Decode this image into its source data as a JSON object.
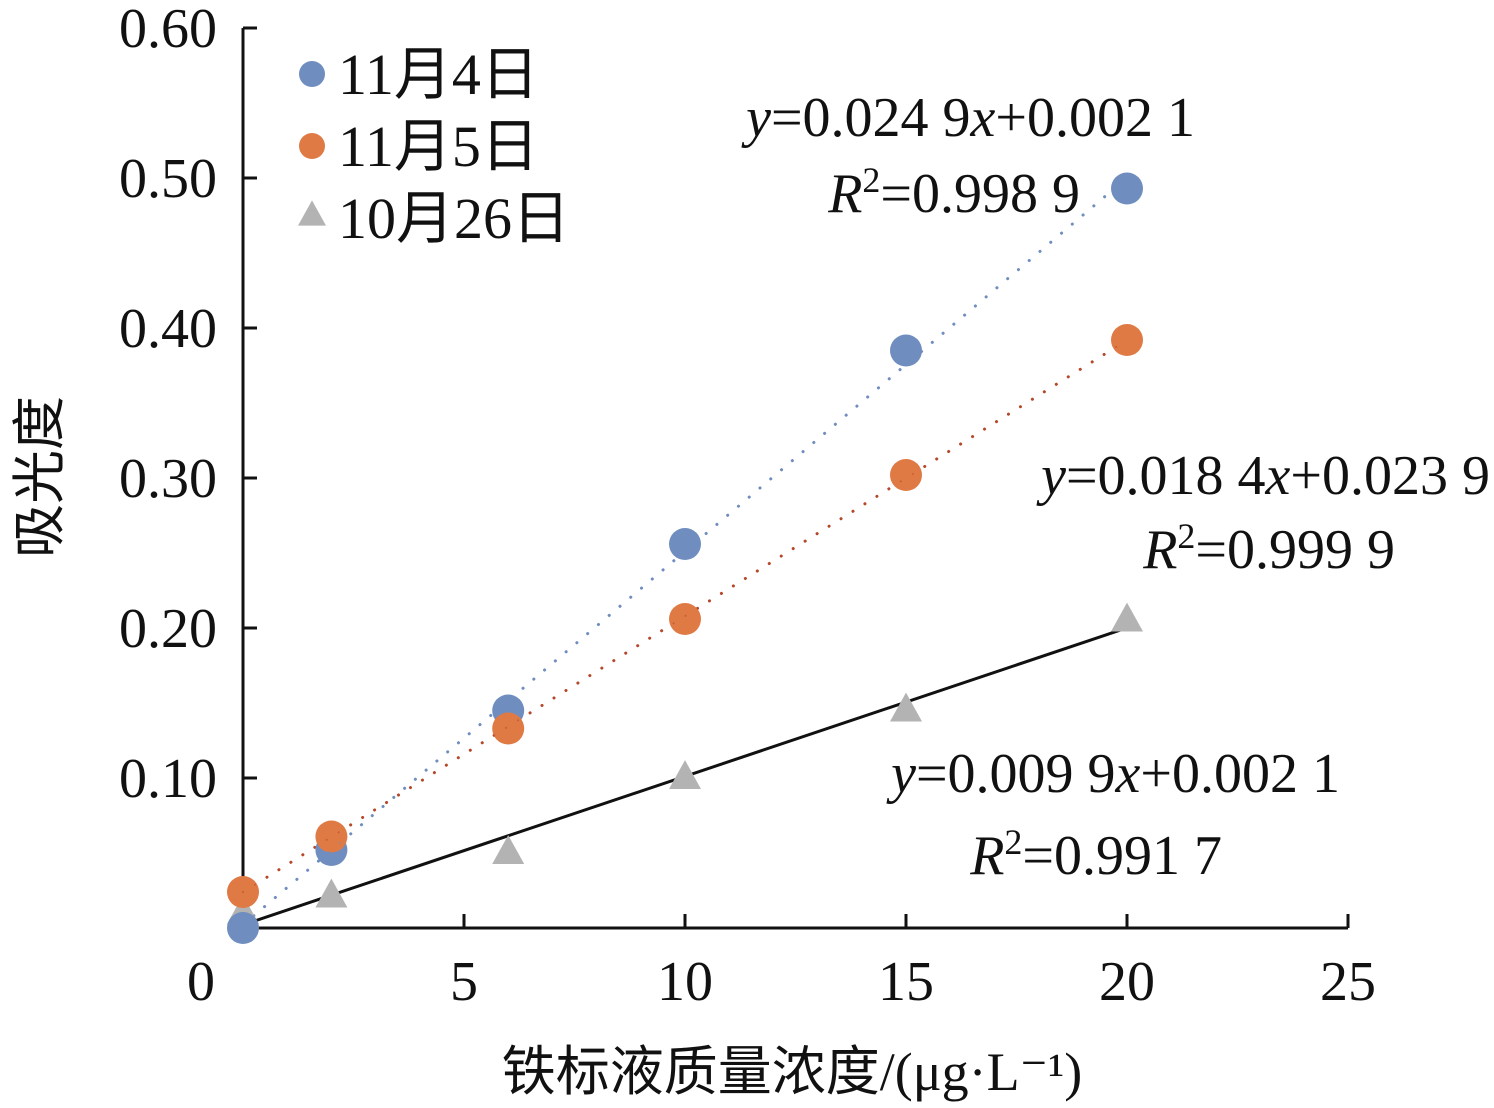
{
  "chart_data": {
    "type": "scatter",
    "xlabel": "铁标液质量浓度/(μg·L⁻¹)",
    "ylabel": "吸光度",
    "xlim": [
      0,
      25
    ],
    "ylim": [
      0,
      0.6
    ],
    "x_ticks": [
      "0",
      "5",
      "10",
      "15",
      "20",
      "25"
    ],
    "y_ticks": [
      "0.10",
      "0.20",
      "0.30",
      "0.40",
      "0.50",
      "0.60"
    ],
    "legend_position": "top-left",
    "series": [
      {
        "name": "11月4日",
        "marker": "circle",
        "color": "#6F8EBF",
        "line_color": "#6F8EBF",
        "line_style": "dotted",
        "x": [
          0,
          2,
          6,
          10,
          15,
          20
        ],
        "y": [
          0.0,
          0.052,
          0.145,
          0.256,
          0.385,
          0.493
        ],
        "fit": {
          "slope": 0.0249,
          "intercept": 0.0021
        },
        "equation": "y=0.024 9x+0.002 1",
        "r2": "R²=0.998 9"
      },
      {
        "name": "11月5日",
        "marker": "circle",
        "color": "#E07A45",
        "line_color": "#B5482A",
        "line_style": "dotted",
        "x": [
          0,
          2,
          6,
          10,
          15,
          20
        ],
        "y": [
          0.024,
          0.061,
          0.133,
          0.206,
          0.302,
          0.392
        ],
        "fit": {
          "slope": 0.0184,
          "intercept": 0.0239
        },
        "equation": "y=0.018 4x+0.023 9",
        "r2": "R²=0.999 9"
      },
      {
        "name": "10月26日",
        "marker": "triangle",
        "color": "#B3B3B3",
        "line_color": "#111111",
        "line_style": "solid",
        "x": [
          0,
          2,
          6,
          10,
          15,
          20
        ],
        "y": [
          0.01,
          0.021,
          0.05,
          0.1,
          0.145,
          0.205
        ],
        "fit": {
          "slope": 0.0099,
          "intercept": 0.0021
        },
        "equation": "y=0.009 9x+0.002 1",
        "r2": "R²=0.991 7"
      }
    ]
  }
}
